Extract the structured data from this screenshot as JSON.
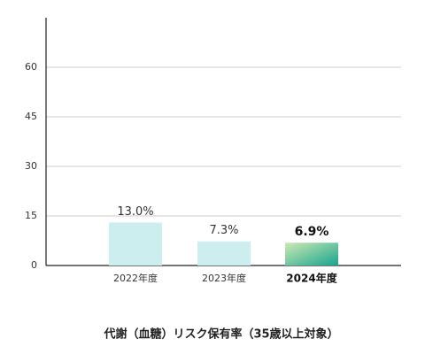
{
  "chart_data": {
    "type": "bar",
    "title": "代謝（血糖）リスク保有率（35歳以上対象）",
    "categories": [
      "2022年度",
      "2023年度",
      "2024年度"
    ],
    "values": [
      13.0,
      7.3,
      6.9
    ],
    "value_labels": [
      "13.0%",
      "7.3%",
      "6.9%"
    ],
    "colors": [
      "#cdeeee",
      "#cdeeee",
      "#1aa88e"
    ],
    "highlight": 2,
    "highlight_gradient": [
      "#cfe9b4",
      "#16a58e"
    ],
    "ylim": [
      0,
      75
    ],
    "yticks": [
      0,
      15,
      30,
      45,
      60
    ],
    "grid": true
  }
}
